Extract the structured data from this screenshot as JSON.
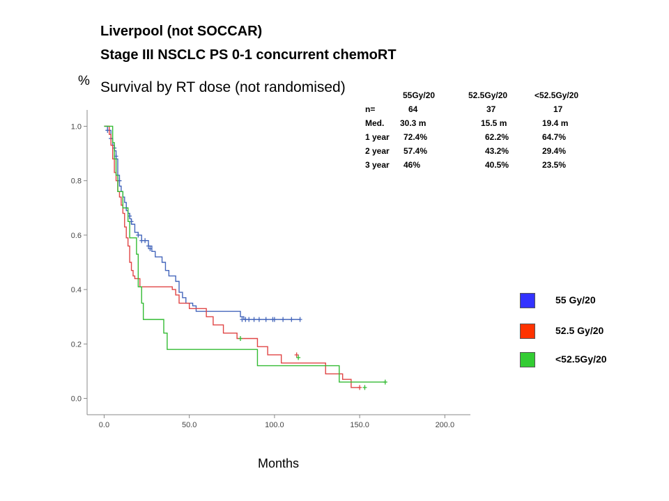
{
  "header": {
    "line1": "Liverpool (not SOCCAR)",
    "line2": "Stage III NSCLC  PS 0-1 concurrent chemoRT",
    "subtitle": "Survival  by RT dose (not randomised)"
  },
  "stats_table": {
    "columns": [
      "55Gy/20",
      "52.5Gy/20",
      "<52.5Gy/20"
    ],
    "rows": [
      {
        "label": "n=",
        "values": [
          "64",
          "37",
          "17"
        ]
      },
      {
        "label": "Med.",
        "values": [
          "30.3 m",
          "15.5 m",
          "19.4 m"
        ]
      },
      {
        "label": "1 year",
        "values": [
          "72.4%",
          "62.2%",
          "64.7%"
        ]
      },
      {
        "label": "2 year",
        "values": [
          "57.4%",
          "43.2%",
          "29.4%"
        ]
      },
      {
        "label": "3 year",
        "values": [
          "46%",
          "40.5%",
          "23.5%"
        ]
      }
    ]
  },
  "legend": [
    {
      "label": "55 Gy/20",
      "color": "#3333ff"
    },
    {
      "label": "52.5 Gy/20",
      "color": "#ff3300"
    },
    {
      "label": "<52.5Gy/20",
      "color": "#33cc33"
    }
  ],
  "chart_data": {
    "type": "line",
    "xlabel": "Months",
    "ylabel": "%",
    "xlim": [
      -10,
      215
    ],
    "ylim": [
      -0.06,
      1.06
    ],
    "x_ticks": [
      0,
      50,
      100,
      150,
      200
    ],
    "x_tick_labels": [
      "0.0",
      "50.0",
      "100.0",
      "150.0",
      "200.0"
    ],
    "y_ticks": [
      0,
      0.2,
      0.4,
      0.6,
      0.8,
      1.0
    ],
    "y_tick_labels": [
      "0.0",
      "0.2",
      "0.4",
      "0.6",
      "0.8",
      "1.0"
    ],
    "series": [
      {
        "name": "55 Gy/20",
        "color": "#4466bb",
        "points": [
          [
            0,
            1.0
          ],
          [
            2,
            0.985
          ],
          [
            4,
            0.955
          ],
          [
            5,
            0.93
          ],
          [
            6,
            0.91
          ],
          [
            7,
            0.88
          ],
          [
            8,
            0.82
          ],
          [
            9,
            0.78
          ],
          [
            10,
            0.76
          ],
          [
            11,
            0.74
          ],
          [
            12,
            0.72
          ],
          [
            13,
            0.69
          ],
          [
            14,
            0.68
          ],
          [
            15,
            0.66
          ],
          [
            16,
            0.64
          ],
          [
            18,
            0.61
          ],
          [
            20,
            0.6
          ],
          [
            22,
            0.58
          ],
          [
            26,
            0.56
          ],
          [
            28,
            0.54
          ],
          [
            30,
            0.52
          ],
          [
            34,
            0.5
          ],
          [
            36,
            0.47
          ],
          [
            38,
            0.45
          ],
          [
            42,
            0.43
          ],
          [
            44,
            0.39
          ],
          [
            46,
            0.37
          ],
          [
            48,
            0.35
          ],
          [
            52,
            0.34
          ],
          [
            54,
            0.32
          ],
          [
            80,
            0.3
          ],
          [
            82,
            0.29
          ],
          [
            115,
            0.29
          ]
        ],
        "censors": [
          [
            2,
            0.985
          ],
          [
            4,
            0.955
          ],
          [
            6,
            0.92
          ],
          [
            7,
            0.89
          ],
          [
            9,
            0.8
          ],
          [
            13,
            0.7
          ],
          [
            15,
            0.67
          ],
          [
            16,
            0.65
          ],
          [
            20,
            0.6
          ],
          [
            22,
            0.58
          ],
          [
            24,
            0.58
          ],
          [
            26,
            0.56
          ],
          [
            27,
            0.55
          ],
          [
            81,
            0.29
          ],
          [
            83,
            0.29
          ],
          [
            85,
            0.29
          ],
          [
            88,
            0.29
          ],
          [
            91,
            0.29
          ],
          [
            95,
            0.29
          ],
          [
            99,
            0.29
          ],
          [
            100,
            0.29
          ],
          [
            105,
            0.29
          ],
          [
            110,
            0.29
          ],
          [
            115,
            0.29
          ]
        ]
      },
      {
        "name": "52.5 Gy/20",
        "color": "#e04444",
        "points": [
          [
            0,
            1.0
          ],
          [
            3,
            0.97
          ],
          [
            4,
            0.93
          ],
          [
            5,
            0.88
          ],
          [
            6,
            0.83
          ],
          [
            7,
            0.8
          ],
          [
            8,
            0.76
          ],
          [
            9,
            0.74
          ],
          [
            10,
            0.71
          ],
          [
            11,
            0.68
          ],
          [
            12,
            0.63
          ],
          [
            13,
            0.59
          ],
          [
            14,
            0.56
          ],
          [
            15,
            0.5
          ],
          [
            16,
            0.47
          ],
          [
            17,
            0.45
          ],
          [
            18,
            0.44
          ],
          [
            21,
            0.41
          ],
          [
            40,
            0.4
          ],
          [
            42,
            0.38
          ],
          [
            44,
            0.35
          ],
          [
            50,
            0.33
          ],
          [
            60,
            0.3
          ],
          [
            64,
            0.27
          ],
          [
            70,
            0.24
          ],
          [
            78,
            0.22
          ],
          [
            90,
            0.19
          ],
          [
            96,
            0.16
          ],
          [
            104,
            0.13
          ],
          [
            120,
            0.13
          ],
          [
            130,
            0.09
          ],
          [
            140,
            0.07
          ],
          [
            145,
            0.04
          ],
          [
            150,
            0.04
          ]
        ],
        "censors": [
          [
            113,
            0.16
          ],
          [
            150,
            0.04
          ]
        ]
      },
      {
        "name": "<52.5Gy/20",
        "color": "#33bb33",
        "points": [
          [
            0,
            1.0
          ],
          [
            5,
            0.94
          ],
          [
            6,
            0.88
          ],
          [
            7,
            0.82
          ],
          [
            8,
            0.76
          ],
          [
            11,
            0.7
          ],
          [
            14,
            0.65
          ],
          [
            15,
            0.59
          ],
          [
            19,
            0.53
          ],
          [
            20,
            0.41
          ],
          [
            22,
            0.35
          ],
          [
            23,
            0.29
          ],
          [
            35,
            0.24
          ],
          [
            37,
            0.18
          ],
          [
            90,
            0.12
          ],
          [
            138,
            0.06
          ],
          [
            165,
            0.06
          ]
        ],
        "censors": [
          [
            80,
            0.22
          ],
          [
            114,
            0.15
          ],
          [
            153,
            0.04
          ],
          [
            165,
            0.06
          ]
        ]
      }
    ]
  }
}
